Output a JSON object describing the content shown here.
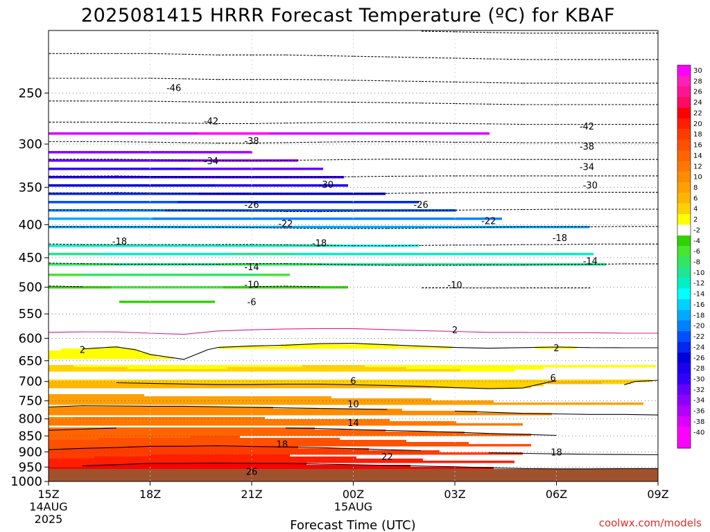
{
  "chart_data": {
    "type": "heatmap",
    "title": "2025081415 HRRR Forecast Temperature (ºC) for KBAF",
    "xlabel": "Forecast Time (UTC)",
    "ylabel": "",
    "y_scale": "log",
    "y_direction": "inverted",
    "ylim": [
      1000,
      200
    ],
    "y_ticks": [
      "250",
      "300",
      "350",
      "400",
      "450",
      "500",
      "550",
      "600",
      "650",
      "700",
      "750",
      "800",
      "850",
      "900",
      "950",
      "1000"
    ],
    "x_ticks": [
      {
        "label": "15Z",
        "sub": [
          "14AUG",
          "2025"
        ]
      },
      {
        "label": "18Z",
        "sub": []
      },
      {
        "label": "21Z",
        "sub": []
      },
      {
        "label": "00Z",
        "sub": [
          "15AUG"
        ]
      },
      {
        "label": "03Z",
        "sub": []
      },
      {
        "label": "06Z",
        "sub": []
      },
      {
        "label": "09Z",
        "sub": []
      }
    ],
    "x_hours": [
      15,
      16,
      17,
      18,
      19,
      20,
      21,
      22,
      23,
      24,
      25,
      26,
      27,
      28,
      29,
      30,
      31,
      32,
      33
    ],
    "levels": [
      1000,
      975,
      950,
      925,
      900,
      875,
      850,
      825,
      800,
      775,
      750,
      725,
      700,
      675,
      650,
      625,
      600,
      575,
      550,
      525,
      500,
      475,
      450,
      425,
      400,
      375,
      350,
      325,
      300,
      275,
      250,
      225,
      200
    ],
    "temperature": [
      [
        25.5,
        25.8,
        26,
        26,
        26,
        25.8,
        25.5,
        25.5,
        25.2,
        25,
        25,
        25,
        25,
        25,
        25,
        25,
        25,
        25,
        25
      ],
      [
        23.7,
        24,
        24.8,
        25,
        25.4,
        25.5,
        25.4,
        25.4,
        25.2,
        25,
        24.9,
        24.5,
        24,
        23.8,
        23.7,
        23.6,
        23.6,
        23.8,
        24
      ],
      [
        22,
        22.3,
        22.6,
        22.9,
        23,
        23.1,
        23,
        23,
        22.8,
        22.7,
        22.5,
        22.3,
        22.1,
        21.8,
        21.6,
        21.5,
        21.5,
        21.5,
        21.5
      ],
      [
        20,
        20.3,
        20.7,
        21,
        21,
        21,
        21,
        21,
        20.8,
        20.5,
        20.3,
        20,
        19.8,
        19.5,
        19.3,
        19.2,
        19.1,
        19,
        19
      ],
      [
        18.5,
        18.8,
        19,
        19.2,
        19.3,
        19.4,
        19.3,
        19.2,
        19,
        18.7,
        18.5,
        18.3,
        18,
        17.8,
        17.7,
        17.6,
        17.5,
        17.5,
        17.4
      ],
      [
        16.7,
        17,
        17.2,
        17.5,
        17.5,
        17.6,
        17.4,
        17.3,
        17.2,
        17,
        16.7,
        16.5,
        16.3,
        16,
        15.8,
        15.6,
        15.5,
        15.5,
        15.4
      ],
      [
        15,
        15.3,
        15.5,
        15.7,
        15.8,
        15.9,
        15.8,
        15.6,
        15.5,
        15.3,
        15.1,
        15,
        14.8,
        14.5,
        14.3,
        14.1,
        14,
        14,
        13.9
      ],
      [
        13.5,
        13.7,
        13.9,
        14,
        14,
        14,
        14,
        13.9,
        13.8,
        13.6,
        13.4,
        13.2,
        13,
        12.8,
        12.6,
        12.5,
        12.4,
        12.4,
        12.3
      ],
      [
        12,
        12.2,
        12.3,
        12.3,
        12.3,
        12.3,
        12.2,
        12.1,
        12,
        11.9,
        11.8,
        11.6,
        11.4,
        11.2,
        11,
        10.9,
        10.8,
        10.8,
        10.7
      ],
      [
        10.5,
        10.7,
        10.7,
        10.7,
        10.7,
        10.6,
        10.5,
        10.4,
        10.3,
        10.2,
        10.1,
        10,
        9.8,
        9.6,
        9.4,
        9.3,
        9.2,
        9.2,
        9.1
      ],
      [
        9,
        9.2,
        9.1,
        9,
        9,
        8.9,
        8.8,
        8.7,
        8.6,
        8.5,
        8.5,
        8.3,
        8.1,
        7.9,
        7.8,
        7.7,
        7.6,
        7.6,
        7.5
      ],
      [
        7.6,
        7.5,
        7.4,
        7.3,
        7.2,
        7.1,
        7.1,
        7.1,
        7.1,
        7,
        6.9,
        6.8,
        6.6,
        6.4,
        6.3,
        6.4,
        6.3,
        6.2,
        6.4
      ],
      [
        6,
        6,
        5.8,
        5.7,
        5.6,
        5.5,
        5.5,
        5.6,
        5.6,
        5.5,
        5.4,
        5.2,
        5,
        4.9,
        5.4,
        6.1,
        6,
        5.9,
        6.2
      ],
      [
        4.8,
        4.6,
        4.5,
        4.3,
        4.3,
        4.3,
        4.3,
        4.4,
        4.5,
        4.5,
        4.3,
        4.2,
        4.1,
        4,
        4.1,
        4.4,
        4.4,
        4.4,
        4.5
      ],
      [
        3.5,
        3.3,
        3.2,
        2.4,
        2.1,
        3.2,
        3.5,
        3.5,
        3.6,
        3.6,
        3.5,
        3.4,
        3.3,
        3.2,
        3.3,
        3.4,
        3.4,
        3.4,
        3.5
      ],
      [
        2,
        2.1,
        2.4,
        1.7,
        1.3,
        2.3,
        2.5,
        2.6,
        2.8,
        2.9,
        2.7,
        2.5,
        2.3,
        2.2,
        2.3,
        2.4,
        2.3,
        2.3,
        2.3
      ],
      [
        0.6,
        0.7,
        0.8,
        0.6,
        0.4,
        0.8,
        1,
        1.1,
        1.3,
        1.3,
        1.1,
        0.9,
        0.8,
        0.7,
        0.7,
        0.7,
        0.7,
        0.6,
        0.6
      ],
      [
        -0.6,
        -0.6,
        -0.7,
        -0.8,
        -0.8,
        -0.5,
        -0.4,
        -0.3,
        -0.3,
        -0.3,
        -0.4,
        -0.5,
        -0.6,
        -0.7,
        -0.7,
        -0.8,
        -0.8,
        -0.8,
        -0.8
      ],
      [
        -2.2,
        -2.3,
        -2.3,
        -2.3,
        -2.3,
        -2.2,
        -2.1,
        -2,
        -2,
        -2,
        -2.1,
        -2.2,
        -2.2,
        -2.3,
        -2.3,
        -2.3,
        -2.3,
        -2.3,
        -2.3
      ],
      [
        -4,
        -4.1,
        -4.1,
        -4.2,
        -4.2,
        -4.1,
        -4,
        -3.9,
        -3.9,
        -4,
        -4,
        -4.1,
        -4.1,
        -4.2,
        -4.2,
        -4.2,
        -4.2,
        -4.2,
        -4.2
      ],
      [
        -5.8,
        -5.9,
        -6,
        -6,
        -6,
        -6,
        -5.9,
        -5.8,
        -5.9,
        -6,
        -6,
        -6.1,
        -6.1,
        -6.1,
        -6.1,
        -6.1,
        -6.1,
        -6,
        -6
      ],
      [
        -8.2,
        -8.3,
        -8.4,
        -8.4,
        -8.4,
        -8.4,
        -8.3,
        -8.3,
        -8.4,
        -8.5,
        -8.6,
        -8.6,
        -8.6,
        -8.6,
        -8.6,
        -8.5,
        -8.5,
        -8.4,
        -8.4
      ],
      [
        -11,
        -11.1,
        -11.2,
        -11.2,
        -11.2,
        -11.2,
        -11.1,
        -11.1,
        -11.2,
        -11.3,
        -11.4,
        -11.4,
        -11.4,
        -11.3,
        -11.3,
        -11.2,
        -11.2,
        -11.1,
        -11.1
      ],
      [
        -14.5,
        -14.6,
        -14.6,
        -14.6,
        -14.6,
        -14.6,
        -14.6,
        -14.7,
        -14.8,
        -14.9,
        -14.9,
        -14.8,
        -14.7,
        -14.7,
        -14.6,
        -14.6,
        -14.5,
        -14.5,
        -14.5
      ],
      [
        -18.5,
        -18.5,
        -18.5,
        -18.5,
        -18.6,
        -18.6,
        -18.7,
        -18.8,
        -18.9,
        -18.9,
        -18.9,
        -18.8,
        -18.7,
        -18.6,
        -18.5,
        -18.5,
        -18.5,
        -18.4,
        -18.4
      ],
      [
        -22.8,
        -22.8,
        -22.7,
        -22.8,
        -22.9,
        -23,
        -23.1,
        -23.2,
        -23.2,
        -23.1,
        -23,
        -22.9,
        -22.8,
        -22.7,
        -22.7,
        -22.6,
        -22.6,
        -22.6,
        -22.6
      ],
      [
        -27.3,
        -27.3,
        -27.2,
        -27.3,
        -27.4,
        -27.5,
        -27.6,
        -27.6,
        -27.6,
        -27.5,
        -27.4,
        -27.3,
        -27.2,
        -27.2,
        -27.2,
        -27.2,
        -27.2,
        -27.2,
        -27.2
      ],
      [
        -32.3,
        -32.3,
        -32.3,
        -32.4,
        -32.5,
        -32.6,
        -32.6,
        -32.6,
        -32.5,
        -32.4,
        -32.3,
        -32.3,
        -32.3,
        -32.3,
        -32.3,
        -32.3,
        -32.3,
        -32.3,
        -32.3
      ],
      [
        -37.5,
        -37.5,
        -37.5,
        -37.6,
        -37.7,
        -37.8,
        -37.8,
        -37.7,
        -37.6,
        -37.5,
        -37.5,
        -37.5,
        -37.6,
        -37.6,
        -37.7,
        -37.7,
        -37.7,
        -37.7,
        -37.7
      ],
      [
        -42.5,
        -42.5,
        -42.5,
        -42.6,
        -42.7,
        -42.8,
        -42.8,
        -42.7,
        -42.6,
        -42.6,
        -42.6,
        -42.7,
        -42.8,
        -42.9,
        -43,
        -43,
        -43,
        -43,
        -43
      ],
      [
        -47.5,
        -47.5,
        -47.5,
        -47.5,
        -47.6,
        -47.7,
        -47.7,
        -47.7,
        -47.7,
        -47.8,
        -47.9,
        -48,
        -48.1,
        -48.2,
        -48.3,
        -48.3,
        -48.3,
        -48.3,
        -48.3
      ],
      [
        -52.5,
        -52.5,
        -52.5,
        -52.5,
        -52.6,
        -52.7,
        -52.7,
        -52.7,
        -52.8,
        -52.9,
        -53,
        -53.1,
        -53.2,
        -53.3,
        -53.4,
        -53.4,
        -53.4,
        -53.4,
        -53.4
      ],
      [
        -57.5,
        -57.5,
        -57.5,
        -57.5,
        -57.6,
        -57.7,
        -57.7,
        -57.7,
        -57.8,
        -57.9,
        -58,
        -58.1,
        -58.2,
        -58.3,
        -58.4,
        -58.4,
        -58.4,
        -58.4,
        -58.4
      ]
    ],
    "surface_level": 1000,
    "surface_color": "#a0522d",
    "contours": {
      "solid_levels": [
        2,
        6,
        10,
        14,
        18,
        22,
        26
      ],
      "dashed_levels": [
        -6,
        -10,
        -14,
        -18,
        -22,
        -26,
        -30,
        -34,
        -38,
        -42,
        -46,
        -50,
        -54,
        -58
      ],
      "freezing_level": 0,
      "freezing_color": "#d0208e"
    },
    "contour_labels": [
      {
        "text": "-46",
        "hour": 18.7,
        "level": 246
      },
      {
        "text": "-42",
        "hour": 19.8,
        "level": 277
      },
      {
        "text": "-42",
        "hour": 30.9,
        "level": 282
      },
      {
        "text": "-38",
        "hour": 21.0,
        "level": 297
      },
      {
        "text": "-38",
        "hour": 30.9,
        "level": 303
      },
      {
        "text": "-34",
        "hour": 19.8,
        "level": 319
      },
      {
        "text": "-34",
        "hour": 30.9,
        "level": 326
      },
      {
        "text": "-30",
        "hour": 23.2,
        "level": 347
      },
      {
        "text": "-30",
        "hour": 31.0,
        "level": 348
      },
      {
        "text": "-26",
        "hour": 21.0,
        "level": 373
      },
      {
        "text": "-26",
        "hour": 26.0,
        "level": 373
      },
      {
        "text": "-22",
        "hour": 22.0,
        "level": 399
      },
      {
        "text": "-22",
        "hour": 28.0,
        "level": 395
      },
      {
        "text": "-18",
        "hour": 17.1,
        "level": 425
      },
      {
        "text": "-18",
        "hour": 23.0,
        "level": 428
      },
      {
        "text": "-18",
        "hour": 30.1,
        "level": 420
      },
      {
        "text": "-14",
        "hour": 21.0,
        "level": 466
      },
      {
        "text": "-14",
        "hour": 31.0,
        "level": 456
      },
      {
        "text": "-10",
        "hour": 21.0,
        "level": 496
      },
      {
        "text": "-10",
        "hour": 27.0,
        "level": 497
      },
      {
        "text": "-6",
        "hour": 21.0,
        "level": 528
      },
      {
        "text": "2",
        "hour": 27.0,
        "level": 583
      },
      {
        "text": "2",
        "hour": 16.0,
        "level": 626
      },
      {
        "text": "2",
        "hour": 30.0,
        "level": 622
      },
      {
        "text": "6",
        "hour": 24.0,
        "level": 700
      },
      {
        "text": "6",
        "hour": 29.9,
        "level": 692
      },
      {
        "text": "10",
        "hour": 24.0,
        "level": 760
      },
      {
        "text": "14",
        "hour": 24.0,
        "level": 812
      },
      {
        "text": "18",
        "hour": 21.9,
        "level": 877
      },
      {
        "text": "18",
        "hour": 30.0,
        "level": 902
      },
      {
        "text": "22",
        "hour": 25.0,
        "level": 917
      },
      {
        "text": "26",
        "hour": 21.0,
        "level": 967
      }
    ],
    "colorbar": {
      "bins": [
        {
          "label": "30",
          "color": "#ff00ff"
        },
        {
          "label": "28",
          "color": "#ff20b8"
        },
        {
          "label": "26",
          "color": "#ff1493"
        },
        {
          "label": "24",
          "color": "#ff0a64"
        },
        {
          "label": "22",
          "color": "#ff0000"
        },
        {
          "label": "20",
          "color": "#ff1e00"
        },
        {
          "label": "18",
          "color": "#ff3c00"
        },
        {
          "label": "16",
          "color": "#ff5000"
        },
        {
          "label": "14",
          "color": "#ff6400"
        },
        {
          "label": "12",
          "color": "#ff7800"
        },
        {
          "label": "10",
          "color": "#ff8c00"
        },
        {
          "label": "8",
          "color": "#ffa000"
        },
        {
          "label": "6",
          "color": "#ffb400"
        },
        {
          "label": "4",
          "color": "#ffd200"
        },
        {
          "label": "2",
          "color": "#ffff00"
        },
        {
          "label": "-2",
          "color": "#ffffff"
        },
        {
          "label": "-4",
          "color": "#32d200"
        },
        {
          "label": "-6",
          "color": "#46e632"
        },
        {
          "label": "-8",
          "color": "#32e664"
        },
        {
          "label": "-10",
          "color": "#1ee696"
        },
        {
          "label": "-12",
          "color": "#00f0c8"
        },
        {
          "label": "-14",
          "color": "#00ffff"
        },
        {
          "label": "-16",
          "color": "#00d2ff"
        },
        {
          "label": "-18",
          "color": "#00aaff"
        },
        {
          "label": "-20",
          "color": "#0082ff"
        },
        {
          "label": "-22",
          "color": "#0050ff"
        },
        {
          "label": "-24",
          "color": "#0028f0"
        },
        {
          "label": "-26",
          "color": "#0000dc"
        },
        {
          "label": "-28",
          "color": "#1e00f0"
        },
        {
          "label": "-30",
          "color": "#3200ff"
        },
        {
          "label": "-32",
          "color": "#6400ff"
        },
        {
          "label": "-34",
          "color": "#8c00ff"
        },
        {
          "label": "-36",
          "color": "#b400ff"
        },
        {
          "label": "-38",
          "color": "#dc00ff"
        },
        {
          "label": "-40",
          "color": "#ff00ff"
        },
        {
          "label": "",
          "color": "#ff00ff"
        }
      ]
    },
    "grid": true
  },
  "footer": {
    "credit": "coolwx.com/models"
  }
}
